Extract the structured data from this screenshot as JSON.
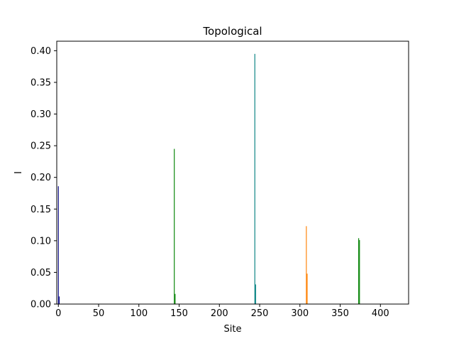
{
  "chart_data": {
    "type": "bar",
    "title": "Topological",
    "xlabel": "Site",
    "ylabel": "I",
    "xlim": [
      -2,
      435
    ],
    "ylim": [
      0,
      0.415
    ],
    "xticks": [
      0,
      50,
      100,
      150,
      200,
      250,
      300,
      350,
      400
    ],
    "xtick_labels": [
      "0",
      "50",
      "100",
      "150",
      "200",
      "250",
      "300",
      "350",
      "400"
    ],
    "yticks": [
      0.0,
      0.05,
      0.1,
      0.15,
      0.2,
      0.25,
      0.3,
      0.35,
      0.4
    ],
    "ytick_labels": [
      "0.00",
      "0.05",
      "0.10",
      "0.15",
      "0.20",
      "0.25",
      "0.30",
      "0.35",
      "0.40"
    ],
    "grid": false,
    "bars": [
      {
        "x": 0,
        "value": 0.186,
        "color": "#000080"
      },
      {
        "x": 1,
        "value": 0.012,
        "color": "#000080"
      },
      {
        "x": 144,
        "value": 0.245,
        "color": "#008000"
      },
      {
        "x": 145,
        "value": 0.016,
        "color": "#008000"
      },
      {
        "x": 244,
        "value": 0.395,
        "color": "#008080"
      },
      {
        "x": 245,
        "value": 0.031,
        "color": "#008080"
      },
      {
        "x": 308,
        "value": 0.123,
        "color": "#ff8000"
      },
      {
        "x": 309,
        "value": 0.048,
        "color": "#ff8000"
      },
      {
        "x": 373,
        "value": 0.104,
        "color": "#008000"
      },
      {
        "x": 374,
        "value": 0.101,
        "color": "#008000"
      }
    ]
  }
}
